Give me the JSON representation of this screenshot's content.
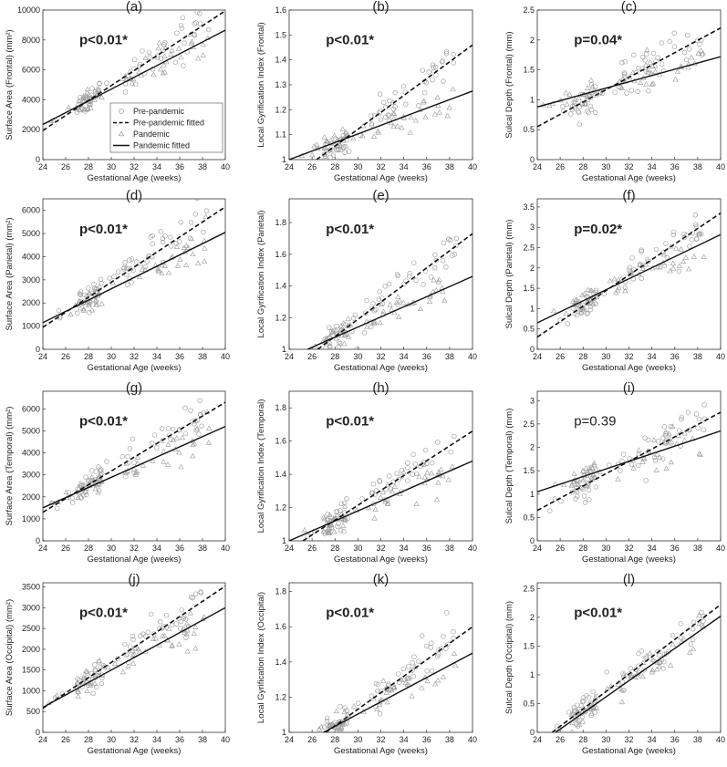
{
  "legend": {
    "items": [
      {
        "label": "Pre-pandemic",
        "marker": "circle"
      },
      {
        "label": "Pre-pandemic fitted",
        "line": "dashed"
      },
      {
        "label": "Pandemic",
        "marker": "triangle"
      },
      {
        "label": "Pandemic fitted",
        "line": "solid"
      }
    ]
  },
  "colors": {
    "points": "#9a9a9a",
    "lines": "#111111",
    "axes": "#333333"
  },
  "chart_data": [
    {
      "type": "scatter",
      "letter": "(a)",
      "pval": "p<0.01*",
      "bold": true,
      "ylabel": "Surface Area (Frontal) (mm²)",
      "xlabel": "Gestational Age (weeks)",
      "xlim": [
        24,
        40
      ],
      "xticks": [
        24,
        26,
        28,
        30,
        32,
        34,
        36,
        38,
        40
      ],
      "ylim": [
        0,
        10000
      ],
      "yticks": [
        0,
        2000,
        4000,
        6000,
        8000,
        10000
      ],
      "fit_pre": [
        [
          24,
          1950
        ],
        [
          40,
          9950
        ]
      ],
      "fit_pan": [
        [
          24,
          2350
        ],
        [
          40,
          8650
        ]
      ]
    },
    {
      "type": "scatter",
      "letter": "(b)",
      "pval": "p<0.01*",
      "bold": true,
      "ylabel": "Local Gyrification Index (Frontal)",
      "xlabel": "Gestational Age (weeks)",
      "xlim": [
        24,
        40
      ],
      "xticks": [
        24,
        26,
        28,
        30,
        32,
        34,
        36,
        38,
        40
      ],
      "ylim": [
        1,
        1.6
      ],
      "yticks": [
        1,
        1.1,
        1.2,
        1.3,
        1.4,
        1.5,
        1.6
      ],
      "fit_pre": [
        [
          26.4,
          1.0
        ],
        [
          40,
          1.46
        ]
      ],
      "fit_pan": [
        [
          24,
          1.0
        ],
        [
          40,
          1.275
        ]
      ]
    },
    {
      "type": "scatter",
      "letter": "(c)",
      "pval": "p=0.04*",
      "bold": true,
      "ylabel": "Sulcal Depth (Frontal) (mm)",
      "xlabel": "Gestational Age (weeks)",
      "xlim": [
        24,
        40
      ],
      "xticks": [
        24,
        26,
        28,
        30,
        32,
        34,
        36,
        38,
        40
      ],
      "ylim": [
        0,
        2.5
      ],
      "yticks": [
        0,
        0.5,
        1,
        1.5,
        2,
        2.5
      ],
      "fit_pre": [
        [
          24,
          0.55
        ],
        [
          40,
          2.2
        ]
      ],
      "fit_pan": [
        [
          24,
          0.88
        ],
        [
          40,
          1.72
        ]
      ]
    },
    {
      "type": "scatter",
      "letter": "(d)",
      "pval": "p<0.01*",
      "bold": true,
      "ylabel": "Surface Area (Parietal) (mm²)",
      "xlabel": "Gestational Age (weeks)",
      "xlim": [
        24,
        40
      ],
      "xticks": [
        24,
        26,
        28,
        30,
        32,
        34,
        36,
        38,
        40
      ],
      "ylim": [
        0,
        6500
      ],
      "yticks": [
        0,
        1000,
        2000,
        3000,
        4000,
        5000,
        6000
      ],
      "fit_pre": [
        [
          24,
          950
        ],
        [
          40,
          6150
        ]
      ],
      "fit_pan": [
        [
          24,
          1150
        ],
        [
          40,
          5050
        ]
      ]
    },
    {
      "type": "scatter",
      "letter": "(e)",
      "pval": "p<0.01*",
      "bold": true,
      "ylabel": "Local Gyrification Index (Parietal)",
      "xlabel": "Gestational Age (weeks)",
      "xlim": [
        24,
        40
      ],
      "xticks": [
        24,
        26,
        28,
        30,
        32,
        34,
        36,
        38,
        40
      ],
      "ylim": [
        1,
        1.95
      ],
      "yticks": [
        1,
        1.2,
        1.4,
        1.6,
        1.8
      ],
      "fit_pre": [
        [
          26.5,
          1.0
        ],
        [
          40,
          1.73
        ]
      ],
      "fit_pan": [
        [
          25.6,
          1.0
        ],
        [
          40,
          1.46
        ]
      ]
    },
    {
      "type": "scatter",
      "letter": "(f)",
      "pval": "p=0.02*",
      "bold": true,
      "ylabel": "Sulcal Depth (Parietal) (mm)",
      "xlabel": "Gestational Age (weeks)",
      "xlim": [
        24,
        40
      ],
      "xticks": [
        24,
        26,
        28,
        30,
        32,
        34,
        36,
        38,
        40
      ],
      "ylim": [
        0,
        3.7
      ],
      "yticks": [
        0,
        0.5,
        1,
        1.5,
        2,
        2.5,
        3,
        3.5
      ],
      "fit_pre": [
        [
          24,
          0.3
        ],
        [
          40,
          3.35
        ]
      ],
      "fit_pan": [
        [
          24,
          0.65
        ],
        [
          40,
          2.82
        ]
      ]
    },
    {
      "type": "scatter",
      "letter": "(g)",
      "pval": "p<0.01*",
      "bold": true,
      "ylabel": "Surface Area (Temporal) (mm²)",
      "xlabel": "Gestational Age (weeks)",
      "xlim": [
        24,
        40
      ],
      "xticks": [
        24,
        26,
        28,
        30,
        32,
        34,
        36,
        38,
        40
      ],
      "ylim": [
        0,
        6800
      ],
      "yticks": [
        0,
        1000,
        2000,
        3000,
        4000,
        5000,
        6000
      ],
      "fit_pre": [
        [
          24,
          1300
        ],
        [
          40,
          6300
        ]
      ],
      "fit_pan": [
        [
          24,
          1500
        ],
        [
          40,
          5200
        ]
      ]
    },
    {
      "type": "scatter",
      "letter": "(h)",
      "pval": "p<0.01*",
      "bold": true,
      "ylabel": "Local Gyrification Index (Temporal)",
      "xlabel": "Gestational Age (weeks)",
      "xlim": [
        24,
        40
      ],
      "xticks": [
        24,
        26,
        28,
        30,
        32,
        34,
        36,
        38,
        40
      ],
      "ylim": [
        1,
        1.9
      ],
      "yticks": [
        1,
        1.2,
        1.4,
        1.6,
        1.8
      ],
      "fit_pre": [
        [
          25.2,
          1.0
        ],
        [
          40,
          1.66
        ]
      ],
      "fit_pan": [
        [
          24,
          1.0
        ],
        [
          40,
          1.48
        ]
      ]
    },
    {
      "type": "scatter",
      "letter": "(i)",
      "pval": "p=0.39",
      "bold": false,
      "ylabel": "Sulcal Depth (Temporal) (mm)",
      "xlabel": "Gestational Age (weeks)",
      "xlim": [
        24,
        40
      ],
      "xticks": [
        24,
        26,
        28,
        30,
        32,
        34,
        36,
        38,
        40
      ],
      "ylim": [
        0,
        3.2
      ],
      "yticks": [
        0,
        0.5,
        1,
        1.5,
        2,
        2.5,
        3
      ],
      "fit_pre": [
        [
          24,
          0.65
        ],
        [
          40,
          2.75
        ]
      ],
      "fit_pan": [
        [
          24,
          1.05
        ],
        [
          40,
          2.35
        ]
      ]
    },
    {
      "type": "scatter",
      "letter": "(j)",
      "pval": "p<0.01*",
      "bold": true,
      "ylabel": "Surface Area (Occipital) (mm²)",
      "xlabel": "Gestational Age (weeks)",
      "xlim": [
        24,
        40
      ],
      "xticks": [
        24,
        26,
        28,
        30,
        32,
        34,
        36,
        38,
        40
      ],
      "ylim": [
        0,
        3600
      ],
      "yticks": [
        0,
        500,
        1000,
        1500,
        2000,
        2500,
        3000,
        3500
      ],
      "fit_pre": [
        [
          24,
          580
        ],
        [
          40,
          3520
        ]
      ],
      "fit_pan": [
        [
          24,
          600
        ],
        [
          40,
          3000
        ]
      ]
    },
    {
      "type": "scatter",
      "letter": "(k)",
      "pval": "p<0.01*",
      "bold": true,
      "ylabel": "Local Gyrification Index (Occipital)",
      "xlabel": "Gestational Age (weeks)",
      "xlim": [
        24,
        40
      ],
      "xticks": [
        24,
        26,
        28,
        30,
        32,
        34,
        36,
        38,
        40
      ],
      "ylim": [
        1,
        1.85
      ],
      "yticks": [
        1,
        1.2,
        1.4,
        1.6,
        1.8
      ],
      "fit_pre": [
        [
          27.2,
          1.0
        ],
        [
          40,
          1.6
        ]
      ],
      "fit_pan": [
        [
          27.0,
          1.0
        ],
        [
          40,
          1.45
        ]
      ]
    },
    {
      "type": "scatter",
      "letter": "(l)",
      "pval": "p<0.01*",
      "bold": true,
      "ylabel": "Sulcal Depth (Occipital) (mm)",
      "xlabel": "Gestational Age (weeks)",
      "xlim": [
        24,
        40
      ],
      "xticks": [
        24,
        26,
        28,
        30,
        32,
        34,
        36,
        38,
        40
      ],
      "ylim": [
        0,
        2.6
      ],
      "yticks": [
        0,
        0.5,
        1,
        1.5,
        2,
        2.5
      ],
      "fit_pre": [
        [
          25.3,
          0
        ],
        [
          40,
          2.22
        ]
      ],
      "fit_pan": [
        [
          25.6,
          0
        ],
        [
          40,
          2.02
        ]
      ]
    }
  ]
}
